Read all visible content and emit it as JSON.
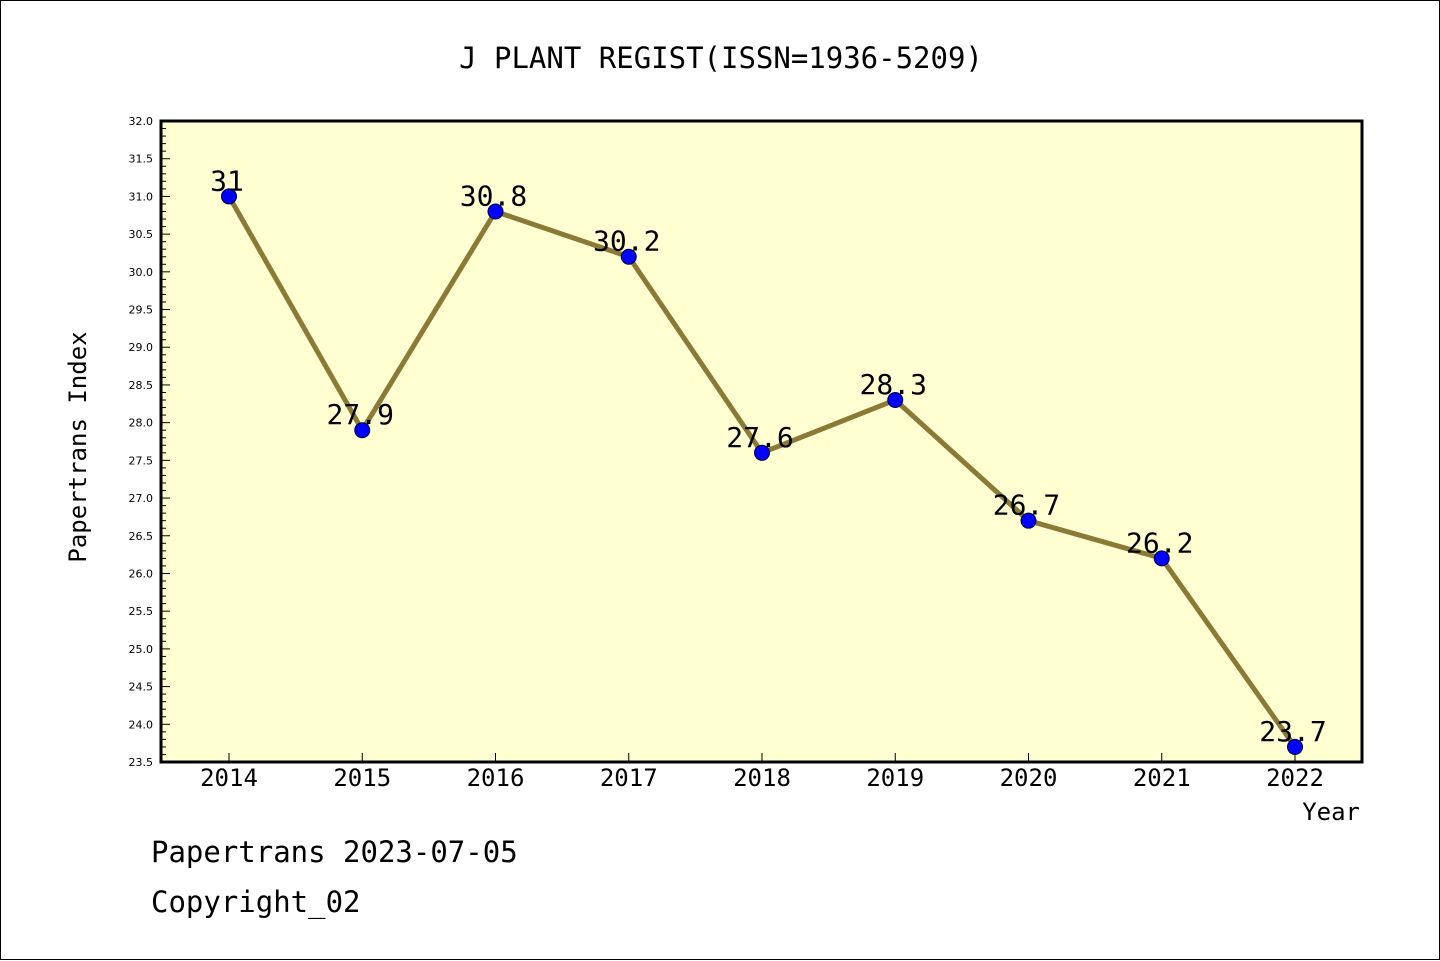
{
  "chart_data": {
    "type": "line",
    "title": "J PLANT REGIST(ISSN=1936-5209)",
    "xlabel": "Year",
    "ylabel": "Papertrans Index",
    "categories": [
      "2014",
      "2015",
      "2016",
      "2017",
      "2018",
      "2019",
      "2020",
      "2021",
      "2022"
    ],
    "values": [
      31,
      27.9,
      30.8,
      30.2,
      27.6,
      28.3,
      26.7,
      26.2,
      23.7
    ],
    "data_labels": [
      "31",
      "27.9",
      "30.8",
      "30.2",
      "27.6",
      "28.3",
      "26.7",
      "26.2",
      "23.7"
    ],
    "ylim": [
      23.5,
      32.0
    ],
    "yticks": [
      "23.5",
      "24.0",
      "24.5",
      "25.0",
      "25.5",
      "26.0",
      "26.5",
      "27.0",
      "27.5",
      "28.0",
      "28.5",
      "29.0",
      "29.5",
      "30.0",
      "30.5",
      "31.0",
      "31.5",
      "32.0"
    ],
    "grid": false,
    "colors": {
      "plot_background": "#ffffd2",
      "line": "#8b7a35",
      "marker": "#0000ff"
    }
  },
  "footer": {
    "date_text": "Papertrans 2023-07-05",
    "copyright_text": "Copyright_02"
  }
}
